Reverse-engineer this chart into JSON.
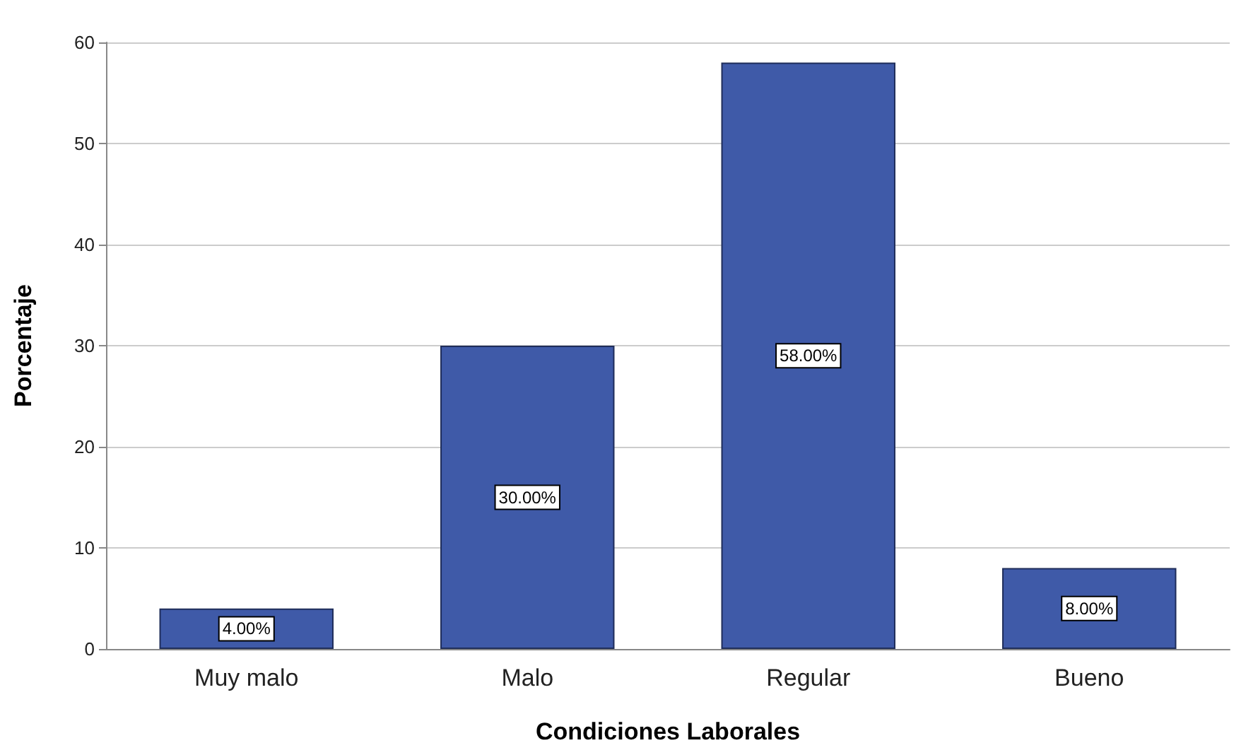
{
  "chart_data": {
    "type": "bar",
    "xlabel": "Condiciones Laborales",
    "ylabel": "Porcentaje",
    "categories": [
      "Muy malo",
      "Malo",
      "Regular",
      "Bueno"
    ],
    "values": [
      4,
      30,
      58,
      8
    ],
    "value_labels": [
      "4.00%",
      "30.00%",
      "58.00%",
      "8.00%"
    ],
    "color": "#3f5aa8",
    "ylim": [
      0,
      60
    ],
    "yticks": [
      0,
      10,
      20,
      30,
      40,
      50,
      60
    ],
    "grid": "y"
  }
}
